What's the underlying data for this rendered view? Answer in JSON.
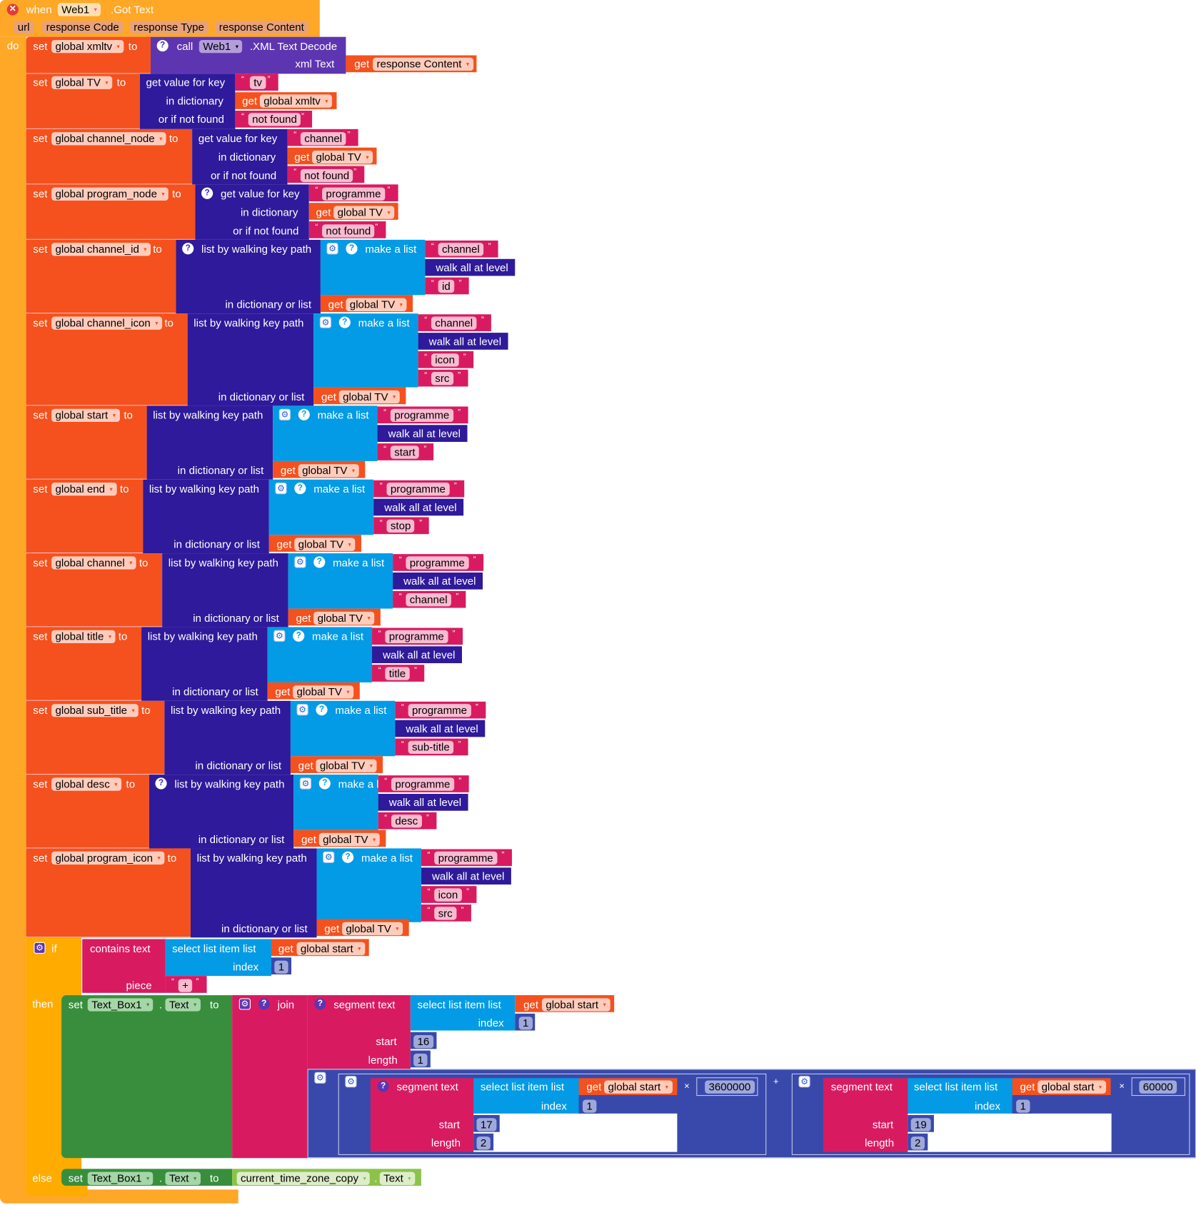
{
  "event": {
    "when": "when",
    "component": "Web1",
    "event_name": ".Got Text",
    "params": [
      "url",
      "response Code",
      "response Type",
      "response Content"
    ],
    "do": "do"
  },
  "labels": {
    "set": "set",
    "to": "to",
    "get": "get",
    "call": "call",
    "xml_decode": ".XML Text Decode",
    "xml_text": "xml Text",
    "get_value_for_key": "get value for key",
    "in_dictionary": "in dictionary",
    "or_if_not_found": "or if not found",
    "list_by_walking": "list by walking key path",
    "in_dict_or_list": "in dictionary or list",
    "make_a_list": "make a list",
    "walk_all": "walk all at level",
    "if": "if",
    "then": "then",
    "else": "else",
    "contains_text": "contains  text",
    "piece": "piece",
    "select_list_item": "select list item  list",
    "index": "index",
    "segment_text": "segment  text",
    "start": "start",
    "length": "length",
    "join": "join",
    "times": "×",
    "plus": "+",
    "dot": "."
  },
  "vars": {
    "xmltv": "global xmltv",
    "tv": "global TV",
    "channel_node": "global channel_node",
    "program_node": "global program_node",
    "channel_id": "global channel_id",
    "channel_icon": "global channel_icon",
    "start": "global start",
    "end": "global end",
    "channel": "global channel",
    "title": "global title",
    "sub_title": "global sub_title",
    "desc": "global desc",
    "program_icon": "global program_icon",
    "response_content": "response Content"
  },
  "strings": {
    "tv": "tv",
    "not_found": "not found",
    "channel": "channel",
    "programme": "programme",
    "id": "id",
    "icon": "icon",
    "src": "src",
    "start": "start",
    "stop": "stop",
    "title": "title",
    "sub_title": "sub-title",
    "desc": "desc",
    "plus": "+"
  },
  "numbers": {
    "one": "1",
    "sixteen": "16",
    "seventeen": "17",
    "nineteen": "19",
    "two": "2",
    "hour_ms": "3600000",
    "minute_ms": "60000"
  },
  "components": {
    "textbox": "Text_Box1",
    "text_prop": "Text",
    "tz_copy": "current_time_zone_copy"
  },
  "icons": {
    "error": "✕",
    "help": "?",
    "gear": "⚙",
    "dropdown": "▾",
    "open_quote": "“",
    "close_quote": "”"
  }
}
